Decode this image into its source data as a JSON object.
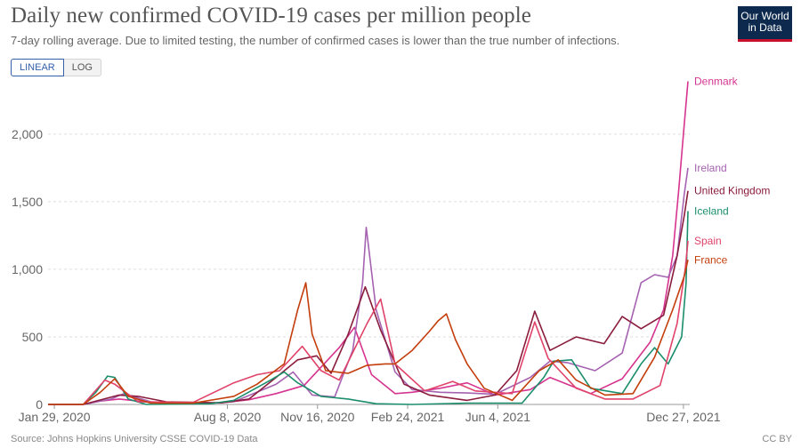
{
  "header": {
    "title": "Daily new confirmed COVID-19 cases per million people",
    "subtitle": "7-day rolling average. Due to limited testing, the number of confirmed cases is lower than the true number of infections.",
    "logo_line1": "Our World",
    "logo_line2": "in Data"
  },
  "controls": {
    "linear_label": "LINEAR",
    "log_label": "LOG",
    "selected": "LINEAR"
  },
  "footer": {
    "source": "Source: Johns Hopkins University CSSE COVID-19 Data",
    "license": "CC BY"
  },
  "colors": {
    "Denmark": "#d6348f",
    "Ireland": "#a562b1",
    "United Kingdom": "#8a1c3c",
    "Iceland": "#1b8e6b",
    "Spain": "#e0436a",
    "France": "#c43e0c",
    "grid": "#dddddd",
    "axis": "#999999",
    "accent": "#3360a9"
  },
  "chart_data": {
    "type": "line",
    "title": "Daily new confirmed COVID-19 cases per million people",
    "subtitle": "7-day rolling average. Due to limited testing, the number of confirmed cases is lower than the true number of infections.",
    "xlabel": "",
    "ylabel": "",
    "x_range": [
      "2020-01-22",
      "2022-01-03"
    ],
    "ylim": [
      0,
      2400
    ],
    "y_ticks": [
      0,
      500,
      1000,
      1500,
      2000
    ],
    "y_tick_labels": [
      "0",
      "500",
      "1,000",
      "1,500",
      "2,000"
    ],
    "x_ticks": [
      "2020-01-29",
      "2020-08-08",
      "2020-11-16",
      "2021-02-24",
      "2021-06-04",
      "2021-12-27"
    ],
    "x_tick_labels": [
      "Jan 29, 2020",
      "Aug 8, 2020",
      "Nov 16, 2020",
      "Feb 24, 2021",
      "Jun 4, 2021",
      "Dec 27, 2021"
    ],
    "grid": true,
    "legend": "line-end labels",
    "series": [
      {
        "name": "Denmark",
        "points": [
          [
            "2020-01-22",
            0
          ],
          [
            "2020-03-01",
            0
          ],
          [
            "2020-03-20",
            25
          ],
          [
            "2020-04-10",
            40
          ],
          [
            "2020-05-01",
            25
          ],
          [
            "2020-06-01",
            5
          ],
          [
            "2020-08-01",
            12
          ],
          [
            "2020-09-01",
            35
          ],
          [
            "2020-10-01",
            80
          ],
          [
            "2020-11-01",
            140
          ],
          [
            "2020-12-10",
            420
          ],
          [
            "2020-12-27",
            570
          ],
          [
            "2021-01-15",
            220
          ],
          [
            "2021-02-10",
            80
          ],
          [
            "2021-03-01",
            90
          ],
          [
            "2021-04-01",
            120
          ],
          [
            "2021-05-01",
            160
          ],
          [
            "2021-06-01",
            70
          ],
          [
            "2021-07-10",
            110
          ],
          [
            "2021-08-01",
            200
          ],
          [
            "2021-09-15",
            80
          ],
          [
            "2021-10-20",
            190
          ],
          [
            "2021-11-20",
            460
          ],
          [
            "2021-12-05",
            700
          ],
          [
            "2021-12-15",
            1100
          ],
          [
            "2021-12-22",
            1600
          ],
          [
            "2021-12-27",
            2000
          ],
          [
            "2022-01-01",
            2390
          ]
        ]
      },
      {
        "name": "Ireland",
        "points": [
          [
            "2020-01-22",
            0
          ],
          [
            "2020-03-01",
            0
          ],
          [
            "2020-04-01",
            40
          ],
          [
            "2020-04-15",
            80
          ],
          [
            "2020-05-15",
            20
          ],
          [
            "2020-07-01",
            3
          ],
          [
            "2020-08-15",
            20
          ],
          [
            "2020-10-01",
            150
          ],
          [
            "2020-10-20",
            240
          ],
          [
            "2020-11-10",
            70
          ],
          [
            "2020-12-05",
            55
          ],
          [
            "2020-12-25",
            400
          ],
          [
            "2021-01-05",
            900
          ],
          [
            "2021-01-09",
            1310
          ],
          [
            "2021-01-20",
            700
          ],
          [
            "2021-02-10",
            240
          ],
          [
            "2021-03-01",
            110
          ],
          [
            "2021-04-01",
            90
          ],
          [
            "2021-05-01",
            85
          ],
          [
            "2021-06-01",
            75
          ],
          [
            "2021-07-10",
            200
          ],
          [
            "2021-08-01",
            320
          ],
          [
            "2021-08-20",
            310
          ],
          [
            "2021-09-20",
            250
          ],
          [
            "2021-10-20",
            380
          ],
          [
            "2021-11-10",
            900
          ],
          [
            "2021-11-25",
            960
          ],
          [
            "2021-12-10",
            940
          ],
          [
            "2021-12-20",
            1100
          ],
          [
            "2021-12-28",
            1560
          ],
          [
            "2022-01-01",
            1750
          ]
        ]
      },
      {
        "name": "United Kingdom",
        "points": [
          [
            "2020-01-22",
            0
          ],
          [
            "2020-03-01",
            0
          ],
          [
            "2020-04-10",
            70
          ],
          [
            "2020-05-01",
            60
          ],
          [
            "2020-06-01",
            20
          ],
          [
            "2020-08-01",
            12
          ],
          [
            "2020-09-01",
            40
          ],
          [
            "2020-10-01",
            200
          ],
          [
            "2020-10-25",
            330
          ],
          [
            "2020-11-15",
            360
          ],
          [
            "2020-12-01",
            230
          ],
          [
            "2020-12-20",
            520
          ],
          [
            "2021-01-08",
            870
          ],
          [
            "2021-01-25",
            550
          ],
          [
            "2021-02-20",
            150
          ],
          [
            "2021-03-20",
            70
          ],
          [
            "2021-05-01",
            30
          ],
          [
            "2021-06-01",
            70
          ],
          [
            "2021-06-25",
            250
          ],
          [
            "2021-07-15",
            690
          ],
          [
            "2021-08-01",
            400
          ],
          [
            "2021-08-30",
            500
          ],
          [
            "2021-09-30",
            450
          ],
          [
            "2021-10-20",
            650
          ],
          [
            "2021-11-10",
            560
          ],
          [
            "2021-12-05",
            660
          ],
          [
            "2021-12-20",
            1100
          ],
          [
            "2021-12-28",
            1400
          ],
          [
            "2022-01-01",
            1580
          ]
        ]
      },
      {
        "name": "Iceland",
        "points": [
          [
            "2020-01-22",
            0
          ],
          [
            "2020-03-01",
            0
          ],
          [
            "2020-03-15",
            90
          ],
          [
            "2020-03-28",
            210
          ],
          [
            "2020-04-05",
            200
          ],
          [
            "2020-04-20",
            40
          ],
          [
            "2020-05-10",
            0
          ],
          [
            "2020-07-20",
            5
          ],
          [
            "2020-08-15",
            30
          ],
          [
            "2020-09-25",
            180
          ],
          [
            "2020-10-10",
            240
          ],
          [
            "2020-10-25",
            160
          ],
          [
            "2020-11-20",
            60
          ],
          [
            "2020-12-20",
            40
          ],
          [
            "2021-01-20",
            5
          ],
          [
            "2021-03-01",
            0
          ],
          [
            "2021-05-01",
            10
          ],
          [
            "2021-07-01",
            10
          ],
          [
            "2021-07-25",
            200
          ],
          [
            "2021-08-05",
            320
          ],
          [
            "2021-08-25",
            330
          ],
          [
            "2021-09-15",
            120
          ],
          [
            "2021-10-20",
            80
          ],
          [
            "2021-11-10",
            300
          ],
          [
            "2021-11-25",
            420
          ],
          [
            "2021-12-10",
            300
          ],
          [
            "2021-12-25",
            500
          ],
          [
            "2021-12-30",
            900
          ],
          [
            "2022-01-01",
            1430
          ]
        ]
      },
      {
        "name": "Spain",
        "points": [
          [
            "2020-01-22",
            0
          ],
          [
            "2020-03-01",
            0
          ],
          [
            "2020-03-25",
            180
          ],
          [
            "2020-04-05",
            150
          ],
          [
            "2020-05-01",
            20
          ],
          [
            "2020-07-01",
            15
          ],
          [
            "2020-08-15",
            160
          ],
          [
            "2020-09-10",
            220
          ],
          [
            "2020-10-05",
            250
          ],
          [
            "2020-10-30",
            430
          ],
          [
            "2020-11-20",
            250
          ],
          [
            "2020-12-10",
            180
          ],
          [
            "2021-01-10",
            600
          ],
          [
            "2021-01-25",
            780
          ],
          [
            "2021-02-10",
            300
          ],
          [
            "2021-03-15",
            100
          ],
          [
            "2021-04-15",
            170
          ],
          [
            "2021-05-10",
            100
          ],
          [
            "2021-06-20",
            80
          ],
          [
            "2021-07-15",
            610
          ],
          [
            "2021-07-30",
            340
          ],
          [
            "2021-08-30",
            120
          ],
          [
            "2021-10-01",
            40
          ],
          [
            "2021-11-01",
            40
          ],
          [
            "2021-12-01",
            140
          ],
          [
            "2021-12-20",
            600
          ],
          [
            "2021-12-29",
            1000
          ],
          [
            "2022-01-01",
            1210
          ]
        ]
      },
      {
        "name": "France",
        "points": [
          [
            "2020-01-22",
            0
          ],
          [
            "2020-03-01",
            0
          ],
          [
            "2020-03-20",
            90
          ],
          [
            "2020-04-05",
            190
          ],
          [
            "2020-04-20",
            60
          ],
          [
            "2020-05-15",
            10
          ],
          [
            "2020-07-01",
            10
          ],
          [
            "2020-08-15",
            60
          ],
          [
            "2020-09-10",
            150
          ],
          [
            "2020-10-10",
            300
          ],
          [
            "2020-10-25",
            700
          ],
          [
            "2020-11-03",
            900
          ],
          [
            "2020-11-10",
            520
          ],
          [
            "2020-11-25",
            250
          ],
          [
            "2020-12-20",
            230
          ],
          [
            "2021-01-10",
            290
          ],
          [
            "2021-01-30",
            300
          ],
          [
            "2021-02-10",
            300
          ],
          [
            "2021-03-01",
            400
          ],
          [
            "2021-03-20",
            540
          ],
          [
            "2021-03-30",
            620
          ],
          [
            "2021-04-08",
            670
          ],
          [
            "2021-04-18",
            480
          ],
          [
            "2021-05-01",
            300
          ],
          [
            "2021-05-20",
            120
          ],
          [
            "2021-06-20",
            30
          ],
          [
            "2021-07-20",
            250
          ],
          [
            "2021-08-10",
            330
          ],
          [
            "2021-08-30",
            180
          ],
          [
            "2021-10-01",
            70
          ],
          [
            "2021-11-01",
            80
          ],
          [
            "2021-11-25",
            350
          ],
          [
            "2021-12-15",
            700
          ],
          [
            "2021-12-28",
            950
          ],
          [
            "2022-01-01",
            1070
          ]
        ]
      }
    ]
  }
}
